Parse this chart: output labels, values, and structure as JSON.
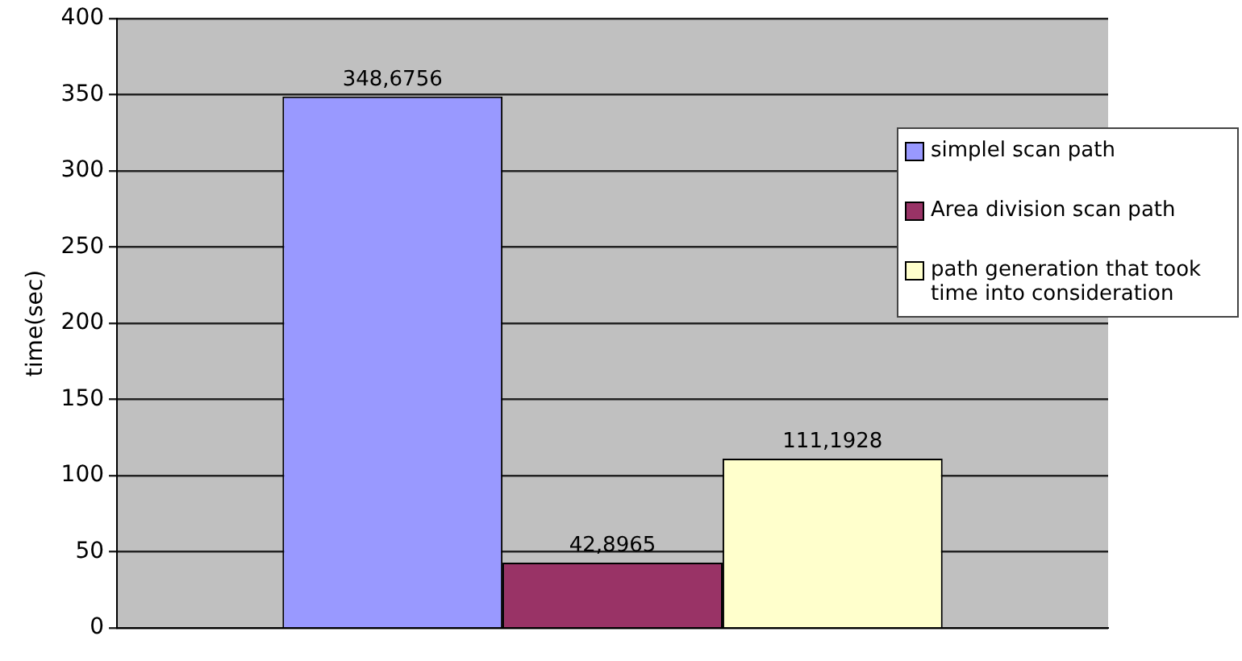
{
  "chart_data": {
    "type": "bar",
    "ylabel": "time(sec)",
    "categories": [
      null
    ],
    "series": [
      {
        "name": "simplel scan path",
        "color": "#9999ff",
        "values": [
          348.6756
        ],
        "value_labels": [
          "348,6756"
        ]
      },
      {
        "name": "Area division scan path",
        "color": "#993366",
        "values": [
          42.8965
        ],
        "value_labels": [
          "42,8965"
        ]
      },
      {
        "name": "path generation that took time into consideration",
        "color": "#ffffcc",
        "values": [
          111.1928
        ],
        "value_labels": [
          "111,1928"
        ]
      }
    ],
    "ylim": [
      0,
      400
    ],
    "yticks": [
      0,
      50,
      100,
      150,
      200,
      250,
      300,
      350,
      400
    ],
    "grid": "y",
    "legend": "right"
  }
}
